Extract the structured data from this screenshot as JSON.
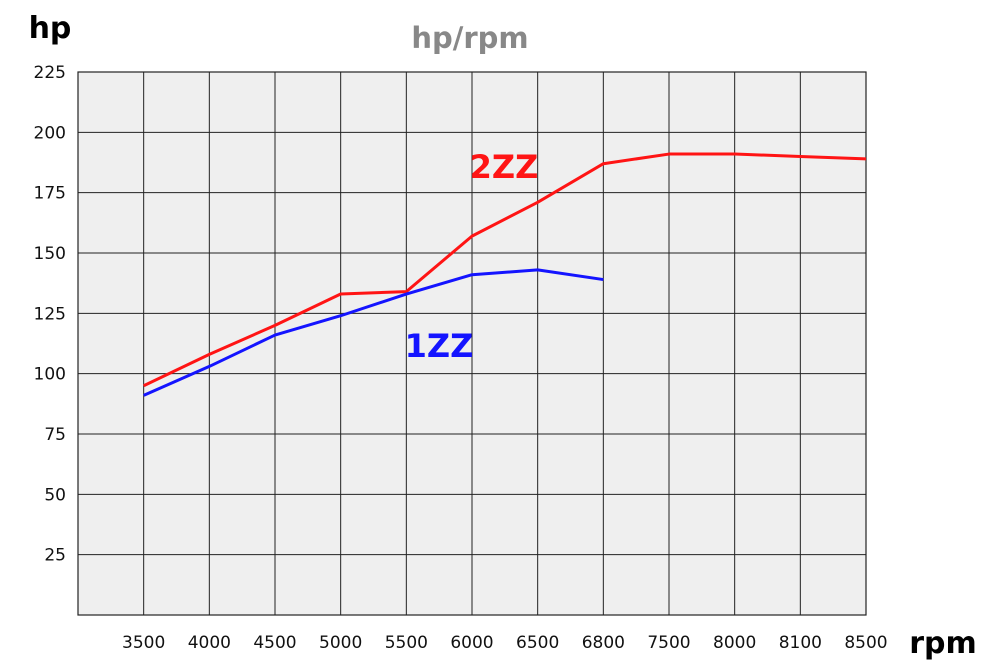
{
  "chart_data": {
    "type": "line",
    "title": "hp/rpm",
    "xlabel": "rpm",
    "ylabel": "hp",
    "categories": [
      "3500",
      "4000",
      "4500",
      "5000",
      "5500",
      "6000",
      "6500",
      "6800",
      "7500",
      "8000",
      "8100",
      "8500"
    ],
    "yticks": [
      "225",
      "200",
      "175",
      "150",
      "125",
      "100",
      "75",
      "50",
      "25"
    ],
    "ylim": [
      0,
      225
    ],
    "grid": true,
    "series": [
      {
        "name": "2ZZ",
        "values": [
          95,
          108,
          120,
          133,
          134,
          157,
          171,
          187,
          191,
          191,
          190,
          189
        ]
      },
      {
        "name": "1ZZ",
        "values": [
          91,
          103,
          116,
          124,
          133,
          141,
          143,
          139,
          null,
          null,
          null,
          null
        ]
      }
    ]
  },
  "colors": {
    "plot_bg": "#efefef",
    "grid": "#222222",
    "title": "#888888",
    "axis_text": "#000000",
    "series_2zz": "#ff1414",
    "series_1zz": "#1414ff"
  }
}
